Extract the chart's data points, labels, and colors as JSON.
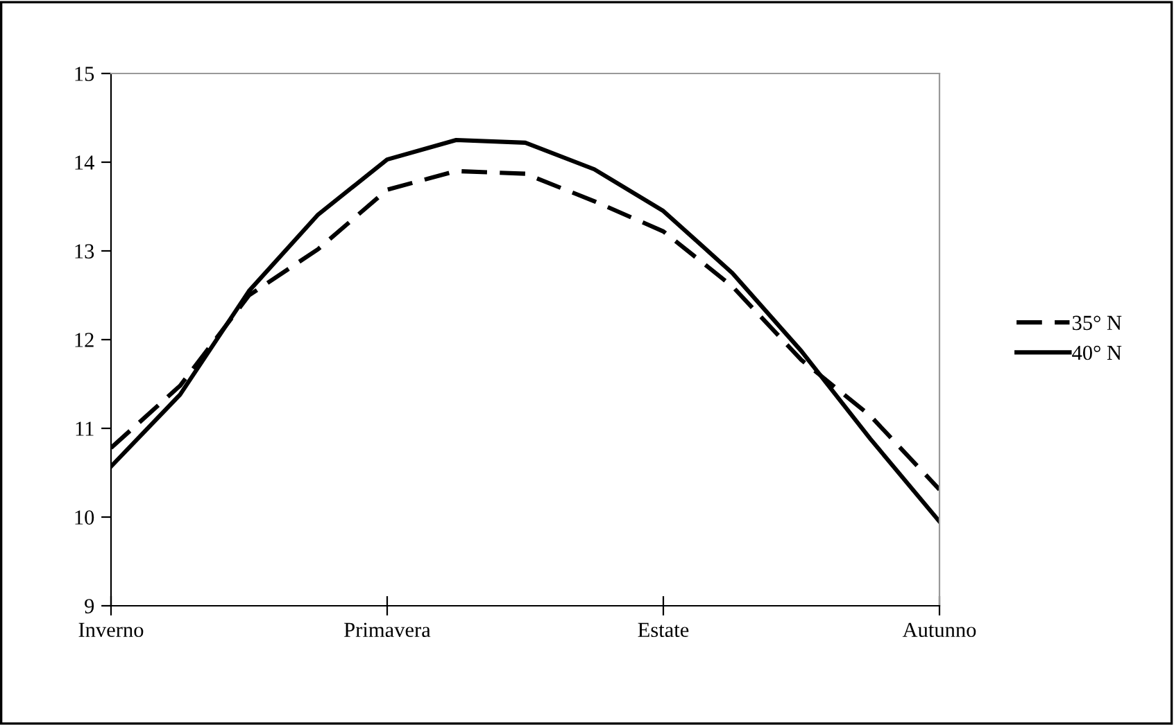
{
  "chart_data": {
    "type": "line",
    "categories": [
      "Inverno",
      null,
      null,
      null,
      "Primavera",
      null,
      null,
      null,
      "Estate",
      null,
      null,
      null,
      "Autunno"
    ],
    "ylim": [
      9,
      15
    ],
    "yticks": [
      9,
      10,
      11,
      12,
      13,
      14,
      15
    ],
    "grid": false,
    "legend": "right",
    "marker": "none",
    "series": [
      {
        "name": "35° N",
        "color": "#000000",
        "line_style": "dashed",
        "values": [
          10.78,
          11.48,
          12.5,
          13.02,
          13.69,
          13.9,
          13.87,
          13.56,
          13.22,
          12.6,
          11.77,
          11.14,
          10.31
        ]
      },
      {
        "name": "40° N",
        "color": "#000000",
        "line_style": "solid",
        "values": [
          10.57,
          11.38,
          12.55,
          13.41,
          14.03,
          14.25,
          14.22,
          13.92,
          13.45,
          12.75,
          11.87,
          10.88,
          9.95
        ]
      }
    ]
  }
}
